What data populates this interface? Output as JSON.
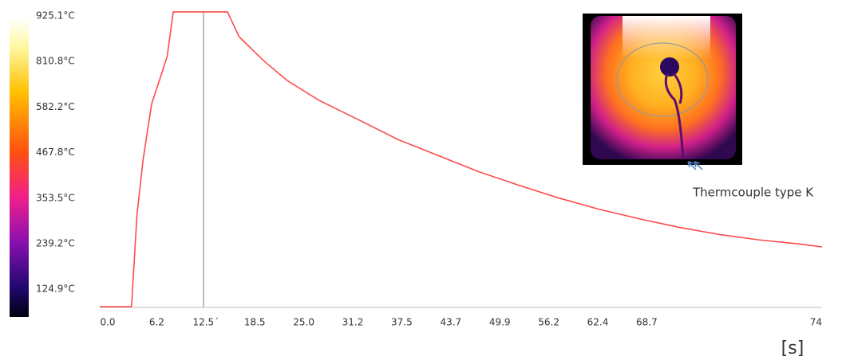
{
  "chart_data": {
    "type": "line",
    "colorbar_labels": [
      "925.1°C",
      "810.8°C",
      "582.2°C",
      "467.8°C",
      "353.5°C",
      "239.2°C",
      "124.9°C"
    ],
    "x_tick_labels": [
      "0.0",
      "6.2",
      "12.5´",
      "18.5",
      "25.0",
      "31.2",
      "37.5",
      "43.7",
      "49.9",
      "56.2",
      "62.4",
      "68.7",
      "74"
    ],
    "x_unit": "[s]",
    "annotation": "Thermcouple type K",
    "xlim": [
      -1.0,
      92.3
    ],
    "ylim": [
      60,
      940
    ],
    "cursor_x": 12.4,
    "series": [
      {
        "name": "Thermocouple",
        "color": "#ff4a4a",
        "x": [
          -1.0,
          3.1,
          3.8,
          4.6,
          5.7,
          6.7,
          7.7,
          8.5,
          15.5,
          17.0,
          20.1,
          23.2,
          27.3,
          32.5,
          37.6,
          42.8,
          47.9,
          53.1,
          58.2,
          63.4,
          68.6,
          73.7,
          78.9,
          84.0,
          89.2,
          92.3
        ],
        "values": [
          74,
          74,
          342,
          505,
          668,
          737,
          807,
          938,
          938,
          865,
          796,
          737,
          679,
          621,
          563,
          516,
          470,
          430,
          393,
          360,
          332,
          307,
          286,
          270,
          258,
          249
        ]
      }
    ]
  }
}
